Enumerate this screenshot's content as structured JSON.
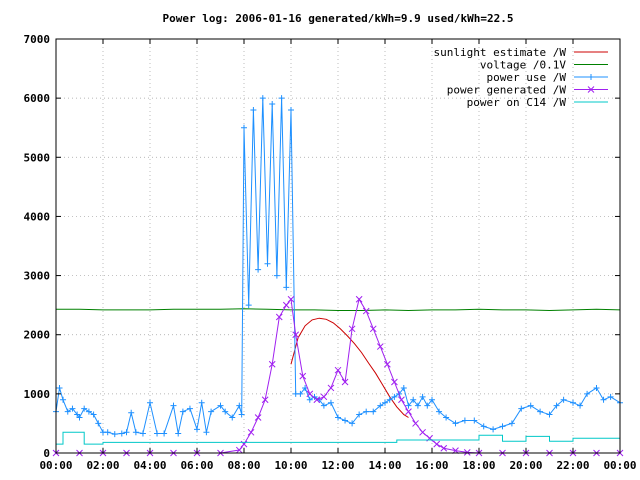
{
  "chart_data": {
    "type": "line",
    "title": "Power log: 2006-01-16 generated/kWh=9.9 used/kWh=22.5",
    "xlabel": "",
    "ylabel": "",
    "xlim": [
      0,
      24
    ],
    "ylim": [
      0,
      7000
    ],
    "grid": true,
    "legend_position": "top-right",
    "x_ticks": [
      "00:00",
      "02:00",
      "04:00",
      "06:00",
      "08:00",
      "10:00",
      "12:00",
      "14:00",
      "16:00",
      "18:00",
      "20:00",
      "22:00",
      "00:00"
    ],
    "y_ticks": [
      "0",
      "1000",
      "2000",
      "3000",
      "4000",
      "5000",
      "6000",
      "7000"
    ],
    "series": [
      {
        "name": "sunlight estimate /W",
        "color": "#cc0000",
        "marker": "none",
        "x": [
          10.0,
          10.3,
          10.6,
          10.9,
          11.2,
          11.5,
          11.8,
          12.1,
          12.4,
          12.7,
          13.0,
          13.3,
          13.6,
          13.9,
          14.2,
          14.5,
          14.8,
          15.0
        ],
        "y": [
          1500,
          1950,
          2150,
          2250,
          2280,
          2260,
          2200,
          2100,
          1980,
          1850,
          1700,
          1520,
          1350,
          1150,
          950,
          780,
          650,
          600
        ]
      },
      {
        "name": "voltage /0.1V",
        "color": "#008000",
        "marker": "none",
        "x": [
          0,
          1,
          2,
          3,
          4,
          5,
          6,
          7,
          8,
          9,
          10,
          11,
          12,
          13,
          14,
          15,
          16,
          17,
          18,
          19,
          20,
          21,
          22,
          23,
          24
        ],
        "y": [
          2430,
          2430,
          2420,
          2420,
          2420,
          2430,
          2430,
          2430,
          2440,
          2430,
          2420,
          2420,
          2410,
          2410,
          2420,
          2410,
          2420,
          2420,
          2430,
          2420,
          2420,
          2410,
          2420,
          2430,
          2420
        ]
      },
      {
        "name": "power use /W",
        "color": "#1e90ff",
        "marker": "plus",
        "x": [
          0.0,
          0.15,
          0.3,
          0.5,
          0.7,
          0.9,
          1.0,
          1.2,
          1.4,
          1.6,
          1.8,
          2.0,
          2.2,
          2.5,
          2.8,
          3.0,
          3.2,
          3.4,
          3.7,
          4.0,
          4.3,
          4.6,
          5.0,
          5.2,
          5.4,
          5.7,
          6.0,
          6.2,
          6.4,
          6.6,
          7.0,
          7.2,
          7.5,
          7.8,
          7.9,
          8.0,
          8.2,
          8.4,
          8.6,
          8.8,
          9.0,
          9.2,
          9.4,
          9.6,
          9.8,
          10.0,
          10.2,
          10.4,
          10.6,
          10.8,
          11.0,
          11.2,
          11.4,
          11.7,
          12.0,
          12.3,
          12.6,
          12.9,
          13.2,
          13.5,
          13.8,
          14.0,
          14.2,
          14.4,
          14.6,
          14.8,
          15.0,
          15.2,
          15.4,
          15.6,
          15.8,
          16.0,
          16.3,
          16.6,
          17.0,
          17.4,
          17.8,
          18.2,
          18.6,
          19.0,
          19.4,
          19.8,
          20.2,
          20.6,
          21.0,
          21.3,
          21.6,
          22.0,
          22.3,
          22.6,
          23.0,
          23.3,
          23.6,
          24.0
        ],
        "y": [
          700,
          1100,
          900,
          700,
          750,
          650,
          600,
          750,
          700,
          650,
          500,
          350,
          350,
          320,
          330,
          350,
          680,
          350,
          330,
          850,
          330,
          330,
          800,
          330,
          700,
          750,
          400,
          850,
          350,
          700,
          800,
          700,
          600,
          800,
          650,
          5500,
          2500,
          5800,
          3100,
          6000,
          3200,
          5900,
          3000,
          6000,
          2800,
          5800,
          1000,
          1000,
          1100,
          900,
          950,
          900,
          800,
          850,
          600,
          550,
          500,
          650,
          700,
          700,
          800,
          850,
          900,
          950,
          1000,
          1100,
          800,
          900,
          800,
          950,
          800,
          900,
          700,
          600,
          500,
          550,
          550,
          450,
          400,
          450,
          500,
          750,
          800,
          700,
          650,
          800,
          900,
          850,
          800,
          1000,
          1100,
          900,
          950,
          850
        ]
      },
      {
        "name": "power generated /W",
        "color": "#a020f0",
        "marker": "cross",
        "x": [
          0,
          1,
          2,
          3,
          4,
          5,
          6,
          7,
          7.8,
          8.0,
          8.3,
          8.6,
          8.9,
          9.2,
          9.5,
          9.8,
          10.0,
          10.2,
          10.5,
          10.8,
          11.1,
          11.4,
          11.7,
          12.0,
          12.3,
          12.6,
          12.9,
          13.2,
          13.5,
          13.8,
          14.1,
          14.4,
          14.7,
          15.0,
          15.3,
          15.6,
          15.9,
          16.2,
          16.5,
          17.0,
          17.5,
          18,
          19,
          20,
          21,
          22,
          23,
          24
        ],
        "y": [
          0,
          0,
          0,
          0,
          0,
          0,
          0,
          0,
          50,
          150,
          350,
          600,
          900,
          1500,
          2300,
          2500,
          2600,
          2000,
          1300,
          1000,
          900,
          950,
          1100,
          1400,
          1200,
          2100,
          2600,
          2400,
          2100,
          1800,
          1500,
          1200,
          900,
          700,
          500,
          350,
          250,
          150,
          80,
          40,
          10,
          0,
          0,
          0,
          0,
          0,
          0,
          0
        ]
      },
      {
        "name": "power on C14 /W",
        "color": "#00c8c8",
        "marker": "none",
        "x": [
          0,
          0.3,
          0.3,
          1.2,
          1.2,
          2.0,
          2.0,
          14.5,
          14.5,
          18.0,
          18.0,
          19.0,
          19.0,
          20.0,
          20.0,
          21.0,
          21.0,
          22.0,
          22.0,
          24.0
        ],
        "y": [
          150,
          150,
          350,
          350,
          150,
          150,
          180,
          180,
          220,
          220,
          300,
          300,
          200,
          200,
          280,
          280,
          200,
          200,
          250,
          250
        ]
      }
    ]
  }
}
